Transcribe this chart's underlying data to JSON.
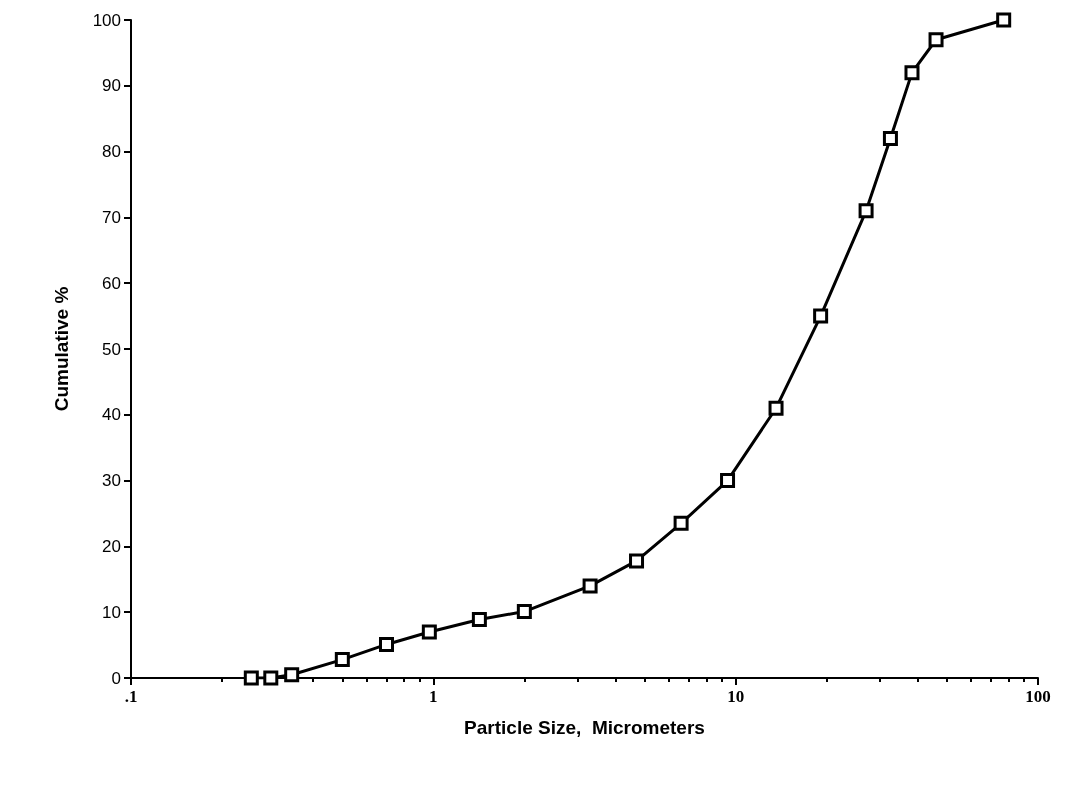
{
  "chart_data": {
    "type": "line",
    "xlabel": "Particle Size,  Micrometers",
    "ylabel": "Cumulative %",
    "log": "x",
    "marker": "square",
    "line_style": "solid",
    "xlim": [
      0.1,
      100
    ],
    "xticks": [
      {
        "value": 0.1,
        "label": ".1"
      },
      1,
      10,
      100
    ],
    "ylim": [
      0,
      100
    ],
    "yticks": [
      0,
      10,
      20,
      30,
      40,
      50,
      60,
      70,
      80,
      90,
      100
    ],
    "series": [
      {
        "color": "#000000",
        "x": [
          0.25,
          0.29,
          0.34,
          0.5,
          0.7,
          0.97,
          1.42,
          2,
          3.3,
          4.7,
          6.6,
          9.4,
          13.6,
          19.1,
          27,
          32.5,
          38.3,
          46,
          77
        ],
        "values": [
          0,
          0,
          0.5,
          2.8,
          5.1,
          7,
          8.9,
          10.1,
          14,
          17.8,
          23.5,
          30,
          41,
          55,
          71,
          82,
          92,
          97,
          100
        ]
      }
    ]
  }
}
